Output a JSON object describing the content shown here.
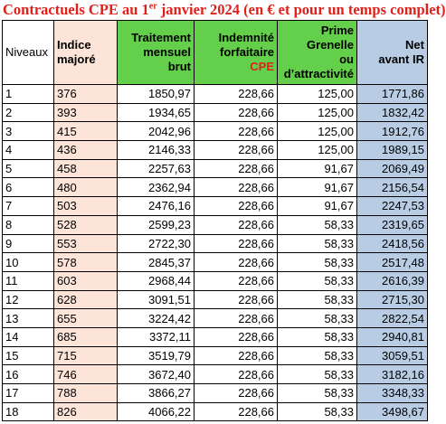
{
  "title": {
    "main": "Contractuels CPE au 1",
    "sup": "er",
    "rest": " janvier 2024 (en € et pour un temps complet)"
  },
  "table": {
    "headers": [
      [
        "Niveaux"
      ],
      [
        "Indice",
        "majoré"
      ],
      [
        "Traitement",
        "mensuel",
        "brut"
      ],
      [
        "Indemnité",
        "forfaitaire",
        "CPE"
      ],
      [
        "Prime",
        "Grenelle",
        "ou",
        "d’attractivité"
      ],
      [
        "Net",
        "avant IR"
      ]
    ],
    "rows": [
      [
        "1",
        "376",
        "1850,97",
        "228,66",
        "125,00",
        "1771,86"
      ],
      [
        "2",
        "393",
        "1934,65",
        "228,66",
        "125,00",
        "1832,42"
      ],
      [
        "3",
        "415",
        "2042,96",
        "228,66",
        "125,00",
        "1912,76"
      ],
      [
        "4",
        "436",
        "2146,33",
        "228,66",
        "125,00",
        "1989,15"
      ],
      [
        "5",
        "458",
        "2257,63",
        "228,66",
        "91,67",
        "2069,49"
      ],
      [
        "6",
        "480",
        "2362,94",
        "228,66",
        "91,67",
        "2156,54"
      ],
      [
        "7",
        "503",
        "2476,16",
        "228,66",
        "91,67",
        "2247,53"
      ],
      [
        "8",
        "528",
        "2599,23",
        "228,66",
        "58,33",
        "2319,65"
      ],
      [
        "9",
        "553",
        "2722,30",
        "228,66",
        "58,33",
        "2418,56"
      ],
      [
        "10",
        "578",
        "2845,37",
        "228,66",
        "58,33",
        "2517,48"
      ],
      [
        "11",
        "603",
        "2968,44",
        "228,66",
        "58,33",
        "2616,39"
      ],
      [
        "12",
        "628",
        "3091,51",
        "228,66",
        "58,33",
        "2715,30"
      ],
      [
        "13",
        "655",
        "3224,42",
        "228,66",
        "58,33",
        "2822,54"
      ],
      [
        "14",
        "685",
        "3372,11",
        "228,66",
        "58,33",
        "2940,81"
      ],
      [
        "15",
        "715",
        "3519,79",
        "228,66",
        "58,33",
        "3059,51"
      ],
      [
        "16",
        "746",
        "3672,40",
        "228,66",
        "58,33",
        "3182,16"
      ],
      [
        "17",
        "788",
        "3866,27",
        "228,66",
        "58,33",
        "3348,33"
      ],
      [
        "18",
        "826",
        "4066,22",
        "228,66",
        "58,33",
        "3498,67"
      ]
    ]
  }
}
